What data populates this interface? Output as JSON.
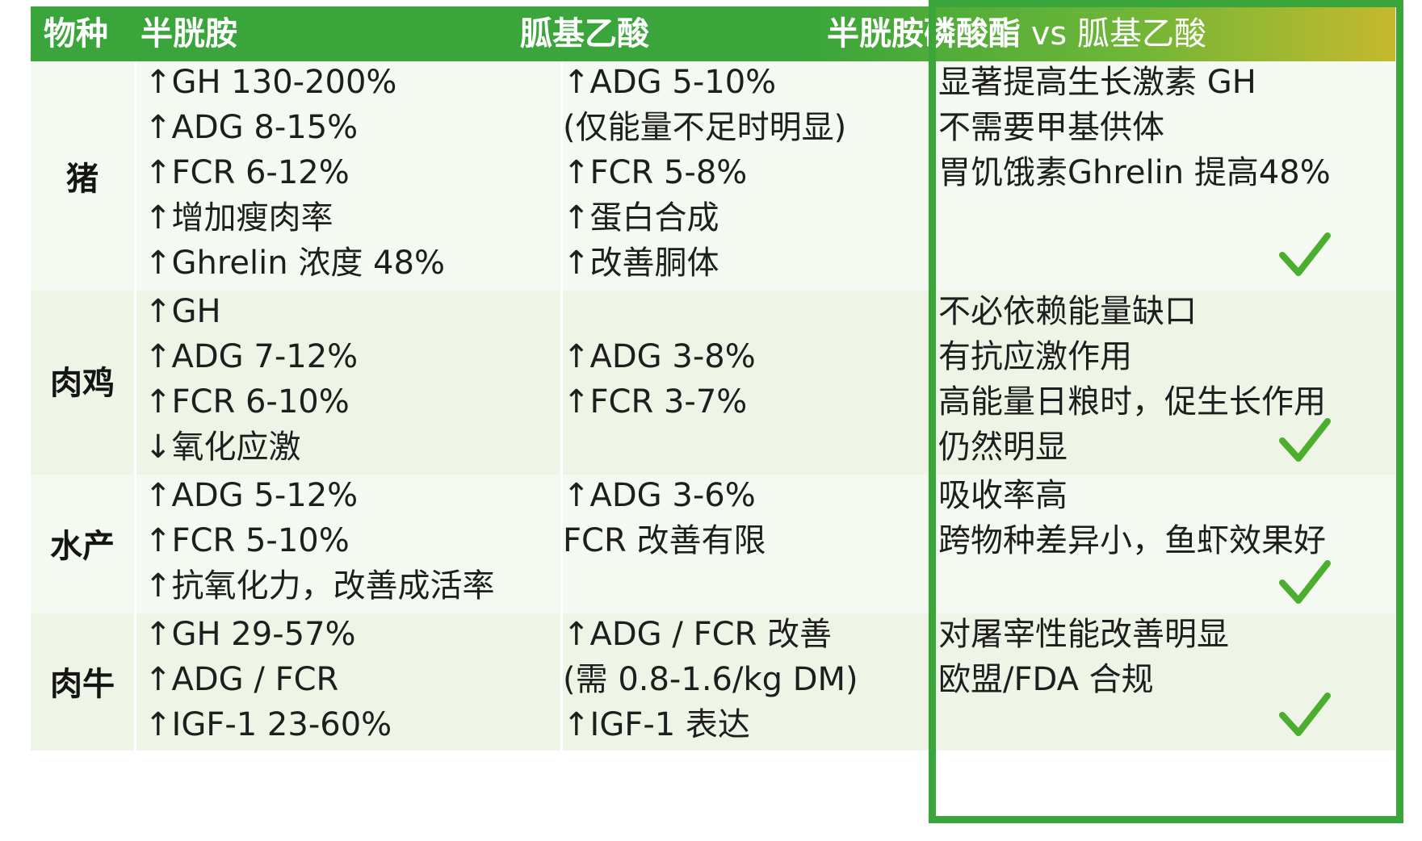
{
  "header": {
    "species": "物种",
    "col_a": "半胱胺",
    "col_b": "胍基乙酸",
    "col_c_main": "半胱胺磷酸酯",
    "col_c_vs": " vs ",
    "col_c_tail": "胍基乙酸"
  },
  "rows": [
    {
      "species": "猪",
      "a": [
        "↑GH   130-200%",
        "↑ADG 8-15%",
        "↑FCR  6-12%",
        "↑增加瘦肉率",
        "↑Ghrelin 浓度 48%"
      ],
      "b": [
        "↑ADG 5-10%",
        "(仅能量不足时明显)",
        "↑FCR  5-8%",
        "↑蛋白合成",
        "↑改善胴体"
      ],
      "c": [
        "显著提高生长激素 GH",
        "不需要甲基供体",
        "胃饥饿素Ghrelin 提高48%"
      ]
    },
    {
      "species": "肉鸡",
      "a": [
        "↑GH",
        "↑ADG 7-12%",
        "↑FCR  6-10%",
        "↓氧化应激"
      ],
      "b": [
        "↑ADG 3-8%",
        "↑FCR  3-7%"
      ],
      "c": [
        "不必依赖能量缺口",
        "有抗应激作用",
        "高能量日粮时，促生长作用",
        "仍然明显"
      ]
    },
    {
      "species": "水产",
      "a": [
        "↑ADG 5-12%",
        "↑FCR  5-10%",
        "↑抗氧化力，改善成活率"
      ],
      "b": [
        "↑ADG 3-6%",
        "FCR  改善有限"
      ],
      "c": [
        "吸收率高",
        "跨物种差异小，鱼虾效果好"
      ]
    },
    {
      "species": "肉牛",
      "a": [
        "↑GH   29-57%",
        "↑ADG /  FCR",
        "↑IGF-1 23-60%"
      ],
      "b": [
        "↑ADG /  FCR 改善",
        "(需 0.8-1.6/kg DM)",
        "↑IGF-1  表达"
      ],
      "c": [
        "对屠宰性能改善明显",
        "欧盟/FDA 合规"
      ]
    }
  ],
  "icons": {
    "check": "check-icon"
  },
  "colors": {
    "header_green": "#3aa53a",
    "check_green": "#4cae2e",
    "highlight_border": "#3aa53a"
  }
}
